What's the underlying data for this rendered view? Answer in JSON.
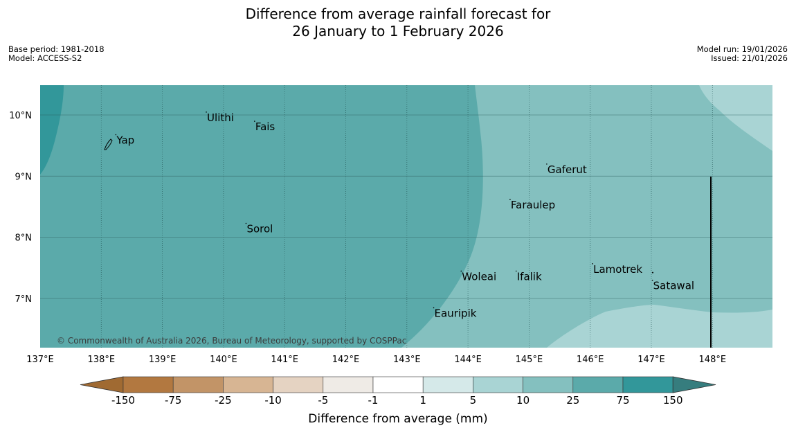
{
  "header": {
    "title_line1": "Difference from average rainfall forecast for",
    "title_line2": "26 January to 1 February 2026",
    "base_period": "Base period: 1981-2018",
    "model": "Model: ACCESS-S2",
    "model_run": "Model run: 19/01/2026",
    "issued": "Issued: 21/01/2026"
  },
  "map": {
    "lon_ticks": [
      "137°E",
      "138°E",
      "139°E",
      "140°E",
      "141°E",
      "142°E",
      "143°E",
      "144°E",
      "145°E",
      "146°E",
      "147°E",
      "148°E"
    ],
    "lat_ticks": [
      "10°N",
      "9°N",
      "8°N",
      "7°N"
    ],
    "places": [
      {
        "name": "Yap",
        "lon": 138.25,
        "lat": 9.53
      },
      {
        "name": "Ulithi",
        "lon": 139.73,
        "lat": 9.9
      },
      {
        "name": "Fais",
        "lon": 140.52,
        "lat": 9.75
      },
      {
        "name": "Gaferut",
        "lon": 145.3,
        "lat": 9.05
      },
      {
        "name": "Faraulep",
        "lon": 144.7,
        "lat": 8.47
      },
      {
        "name": "Sorol",
        "lon": 140.38,
        "lat": 8.08
      },
      {
        "name": "Lamotrek",
        "lon": 146.05,
        "lat": 7.42
      },
      {
        "name": "Woleai",
        "lon": 143.9,
        "lat": 7.3
      },
      {
        "name": "Ifalik",
        "lon": 144.8,
        "lat": 7.3
      },
      {
        "name": "Satawal",
        "lon": 147.03,
        "lat": 7.15
      },
      {
        "name": "Eauripik",
        "lon": 143.45,
        "lat": 6.7
      }
    ],
    "copyright": "© Commonwealth of Australia 2026, Bureau of Meteorology, supported by COSPPac"
  },
  "colorbar": {
    "title": "Difference from average (mm)",
    "labels": [
      "-150",
      "-75",
      "-25",
      "-10",
      "-5",
      "-1",
      "1",
      "5",
      "10",
      "25",
      "75",
      "150"
    ],
    "colors": [
      "#a06a32",
      "#b27840",
      "#c29467",
      "#d7b593",
      "#e5d3c2",
      "#efebe6",
      "#ffffff",
      "#d5e9e9",
      "#a9d4d4",
      "#84c0bf",
      "#5baaaa",
      "#32979a",
      "#367d7e"
    ]
  }
}
